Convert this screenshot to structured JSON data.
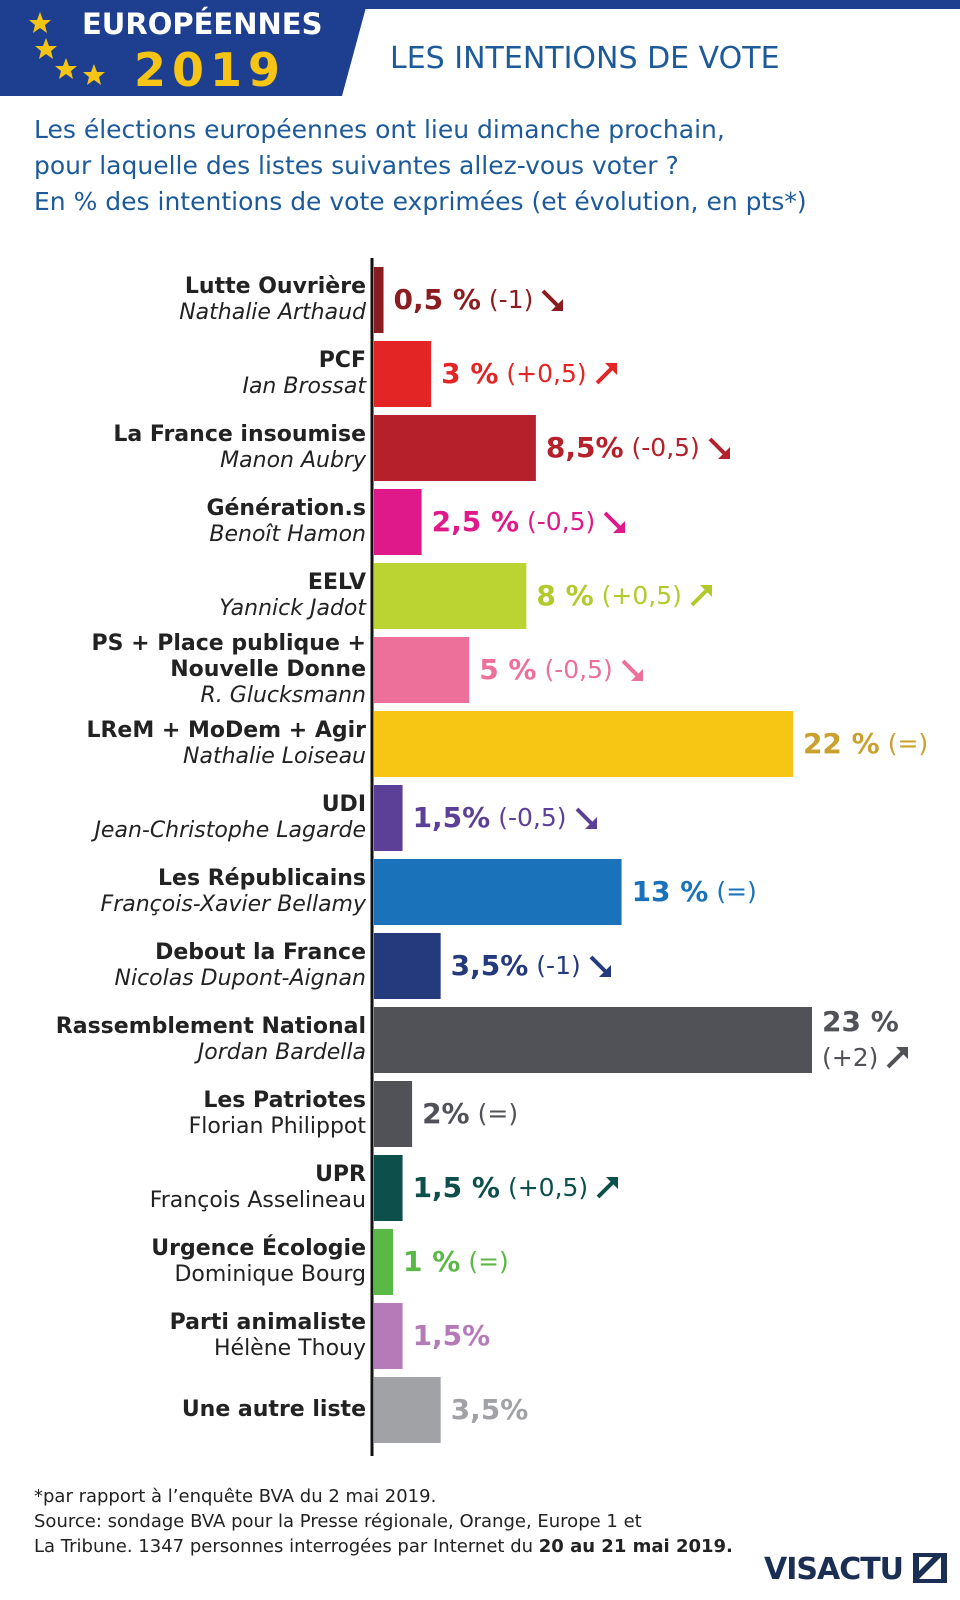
{
  "header": {
    "badge_top": "EUROPÉENNES",
    "badge_year": "2019",
    "title": "LES INTENTIONS DE VOTE"
  },
  "chart_data": {
    "type": "bar",
    "orientation": "horizontal",
    "subtitle": [
      "Les élections européennes ont lieu dimanche prochain,",
      "pour laquelle des listes suivantes allez-vous voter ?",
      "En % des intentions de vote exprimées (et évolution, en pts*)"
    ],
    "categories": [
      "Lutte Ouvrière",
      "PCF",
      "La France insoumise",
      "Génération.s",
      "EELV",
      "PS + Place publique + Nouvelle Donne",
      "LReM + MoDem + Agir",
      "UDI",
      "Les Républicains",
      "Debout la France",
      "Rassemblement National",
      "Les Patriotes",
      "UPR",
      "Urgence Écologie",
      "Parti animaliste",
      "Une autre liste"
    ],
    "candidates": [
      "Nathalie Arthaud",
      "Ian Brossat",
      "Manon Aubry",
      "Benoît Hamon",
      "Yannick Jadot",
      "R. Glucksmann",
      "Nathalie Loiseau",
      "Jean-Christophe Lagarde",
      "François-Xavier Bellamy",
      "Nicolas Dupont-Aignan",
      "Jordan Bardella",
      "Florian Philippot",
      "François Asselineau",
      "Dominique Bourg",
      "Hélène Thouy",
      null
    ],
    "values": [
      0.5,
      3,
      8.5,
      2.5,
      8,
      5,
      22,
      1.5,
      13,
      3.5,
      23,
      2,
      1.5,
      1,
      1.5,
      3.5
    ],
    "value_labels": [
      "0,5 %",
      "3 %",
      "8,5%",
      "2,5 %",
      "8 %",
      "5 %",
      "22 %",
      "1,5%",
      "13 %",
      "3,5%",
      "23 %",
      "2%",
      "1,5 %",
      "1 %",
      "1,5%",
      "3,5%"
    ],
    "changes": [
      -1,
      0.5,
      -0.5,
      -0.5,
      0.5,
      -0.5,
      0,
      -0.5,
      0,
      -1,
      2,
      0,
      0.5,
      0,
      null,
      null
    ],
    "change_labels": [
      "(-1)",
      "(+0,5)",
      "(-0,5)",
      "(-0,5)",
      "(+0,5)",
      "(-0,5)",
      "(=)",
      "(-0,5)",
      "(=)",
      "(-1)",
      "(+2)",
      "(=)",
      "(+0,5)",
      "(=)",
      null,
      null
    ],
    "colors": [
      "#8b1c1f",
      "#e32526",
      "#b5202a",
      "#e0198a",
      "#bcd431",
      "#ec709a",
      "#f7c514",
      "#5c3f96",
      "#1a73ba",
      "#243a7c",
      "#505257",
      "#505257",
      "#0d4f4a",
      "#5ab946",
      "#b57ab8",
      "#a0a2a5"
    ],
    "label_colors": [
      "#8b1c1f",
      "#e32526",
      "#b5202a",
      "#e0198a",
      "#b3c92c",
      "#ec709a",
      "#c9a12f",
      "#5c3f96",
      "#1a73ba",
      "#243a7c",
      "#505257",
      "#505257",
      "#0d4f4a",
      "#5ab946",
      "#b57ab8",
      "#a0a2a5"
    ]
  },
  "footer": {
    "note": "*par rapport à l’enquête BVA du 2 mai 2019.",
    "source_1": "Source: sondage BVA pour la Presse régionale, Orange, Europe 1 et",
    "source_2": "La Tribune. 1347 personnes interrogées par Internet du",
    "source_dates": "20 au 21 mai 2019.",
    "logo": "VISACTU"
  }
}
